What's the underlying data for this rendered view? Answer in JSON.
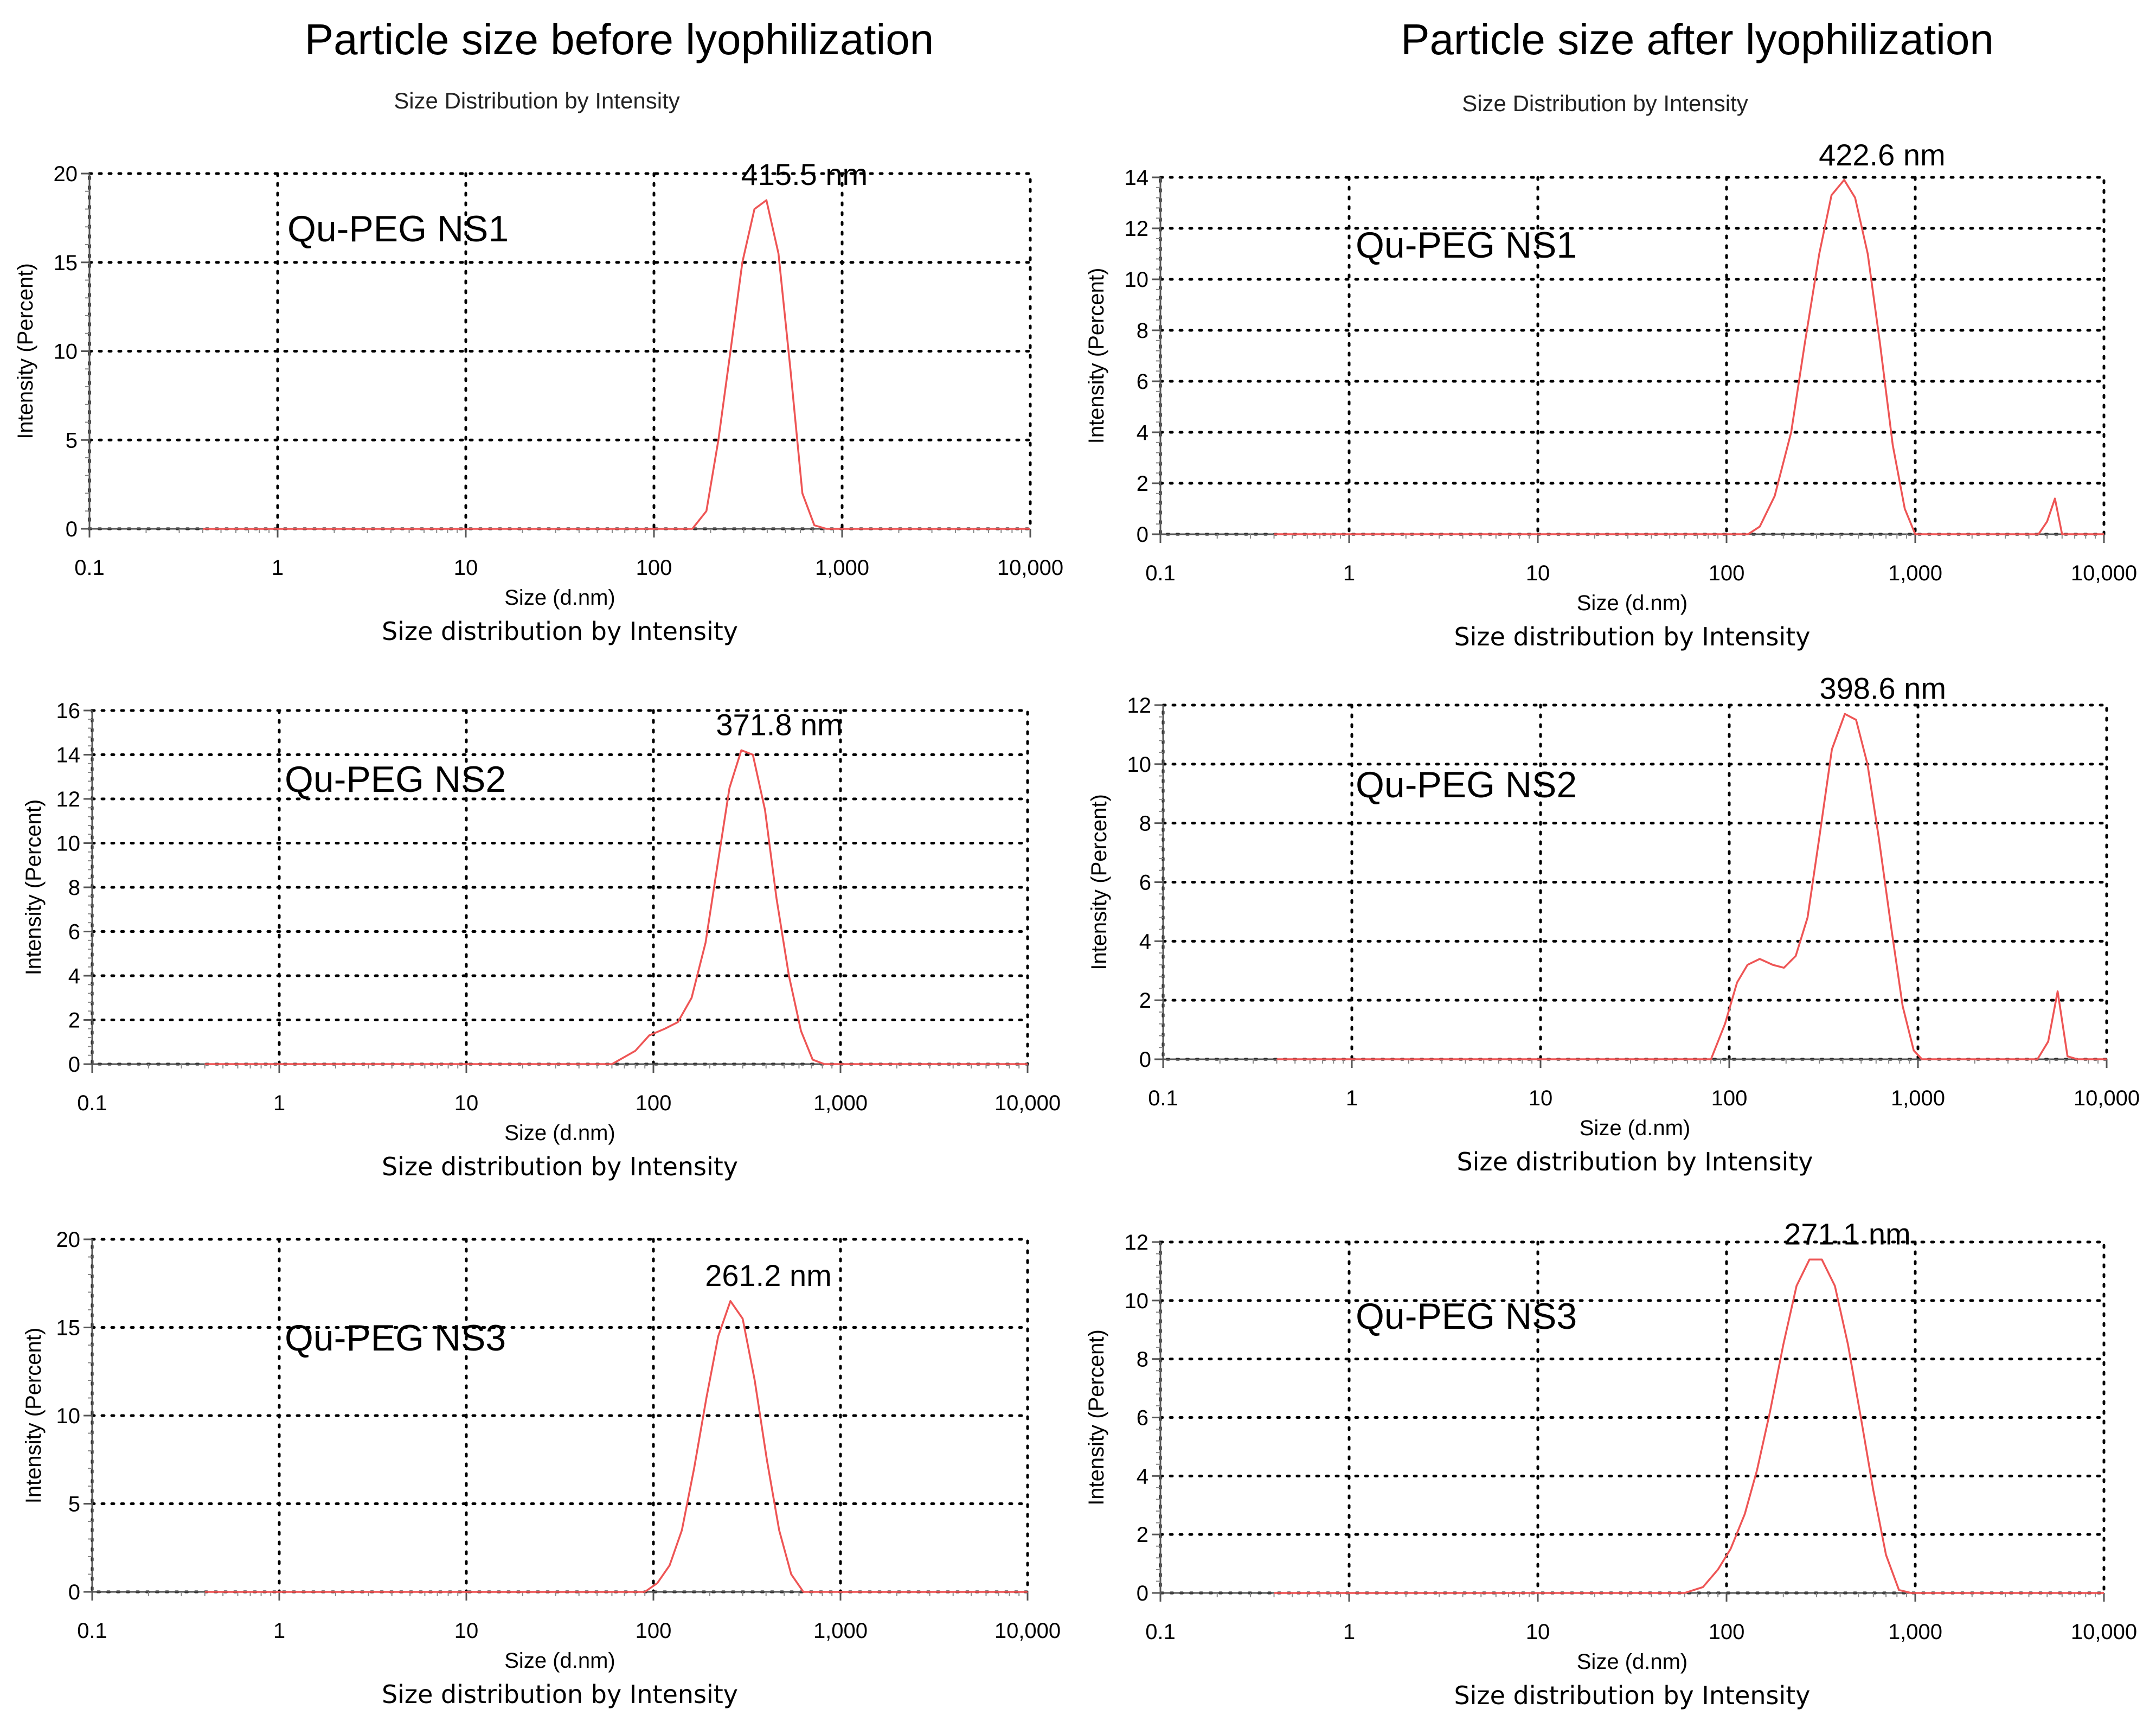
{
  "headings": {
    "before": "Particle size before lyophilization",
    "after": "Particle size after lyophilization"
  },
  "colors": {
    "series": "#ee5555",
    "grid": "#000000",
    "axis": "#555555"
  },
  "chart_data": [
    {
      "type": "line",
      "id": "before-ns1",
      "subtitle": "Size Distribution by Intensity",
      "sample": "Qu-PEG NS1",
      "peak_label": "415.5 nm",
      "xlabel": "Size (d.nm)",
      "ylabel": "Intensity (Percent)",
      "caption": "Size distribution by Intensity",
      "xscale": "log",
      "xlim": [
        0.1,
        10000
      ],
      "ylim": [
        0,
        20
      ],
      "x_ticks": [
        "0.1",
        "1",
        "10",
        "100",
        "1,000",
        "10,000"
      ],
      "y_ticks": [
        "0",
        "5",
        "10",
        "15",
        "20"
      ],
      "grid": true,
      "x": [
        0.4,
        100,
        160,
        190,
        220,
        255,
        295,
        342,
        396,
        459,
        531,
        615,
        712,
        825,
        1000,
        10000
      ],
      "y": [
        0,
        0,
        0,
        1,
        5,
        10,
        15,
        18,
        18.5,
        15.5,
        9,
        2,
        0.2,
        0,
        0,
        0
      ]
    },
    {
      "type": "line",
      "id": "after-ns1",
      "subtitle": "Size Distribution by Intensity",
      "sample": "Qu-PEG NS1",
      "peak_label": "422.6 nm",
      "xlabel": "Size (d.nm)",
      "ylabel": "Intensity (Percent)",
      "caption": "Size distribution by Intensity",
      "xscale": "log",
      "xlim": [
        0.1,
        10000
      ],
      "ylim": [
        0,
        14
      ],
      "x_ticks": [
        "0.1",
        "1",
        "10",
        "100",
        "1,000",
        "10,000"
      ],
      "y_ticks": [
        "0",
        "2",
        "4",
        "6",
        "8",
        "10",
        "12",
        "14"
      ],
      "grid": true,
      "x": [
        0.4,
        100,
        130,
        150,
        180,
        220,
        260,
        310,
        360,
        420,
        480,
        560,
        650,
        760,
        880,
        1000,
        4500,
        5000,
        5500,
        6000,
        10000
      ],
      "y": [
        0,
        0,
        0,
        0.3,
        1.5,
        4,
        7.5,
        11,
        13.3,
        13.9,
        13.2,
        11,
        7.5,
        3.5,
        1,
        0,
        0,
        0.5,
        1.4,
        0,
        0
      ]
    },
    {
      "type": "line",
      "id": "before-ns2",
      "subtitle": "",
      "sample": "Qu-PEG NS2",
      "peak_label": "371.8 nm",
      "xlabel": "Size (d.nm)",
      "ylabel": "Intensity (Percent)",
      "caption": "Size distribution by Intensity",
      "xscale": "log",
      "xlim": [
        0.1,
        10000
      ],
      "ylim": [
        0,
        16
      ],
      "x_ticks": [
        "0.1",
        "1",
        "10",
        "100",
        "1,000",
        "10,000"
      ],
      "y_ticks": [
        "0",
        "2",
        "4",
        "6",
        "8",
        "10",
        "12",
        "14",
        "16"
      ],
      "grid": true,
      "x": [
        0.4,
        60,
        80,
        95,
        115,
        135,
        160,
        190,
        220,
        255,
        295,
        340,
        395,
        455,
        530,
        615,
        710,
        820,
        1000,
        10000
      ],
      "y": [
        0,
        0,
        0.6,
        1.3,
        1.6,
        1.9,
        3,
        5.5,
        9,
        12.5,
        14.2,
        14,
        11.5,
        7.5,
        4,
        1.5,
        0.2,
        0,
        0,
        0
      ]
    },
    {
      "type": "line",
      "id": "after-ns2",
      "subtitle": "",
      "sample": "Qu-PEG NS2",
      "peak_label": "398.6 nm",
      "xlabel": "Size (d.nm)",
      "ylabel": "Intensity (Percent)",
      "caption": "Size distribution by Intensity",
      "xscale": "log",
      "xlim": [
        0.1,
        10000
      ],
      "ylim": [
        0,
        12
      ],
      "x_ticks": [
        "0.1",
        "1",
        "10",
        "100",
        "1,000",
        "10,000"
      ],
      "y_ticks": [
        "0",
        "2",
        "4",
        "6",
        "8",
        "10",
        "12"
      ],
      "grid": true,
      "x": [
        0.4,
        80,
        95,
        110,
        125,
        145,
        170,
        195,
        225,
        260,
        300,
        350,
        410,
        470,
        540,
        620,
        720,
        830,
        950,
        1050,
        1200,
        4300,
        4900,
        5500,
        6200,
        7000,
        10000
      ],
      "y": [
        0,
        0,
        1.2,
        2.6,
        3.2,
        3.4,
        3.2,
        3.1,
        3.5,
        4.8,
        7.5,
        10.5,
        11.7,
        11.5,
        10,
        7.5,
        4.5,
        1.8,
        0.3,
        0,
        0,
        0,
        0.6,
        2.3,
        0.1,
        0,
        0
      ]
    },
    {
      "type": "line",
      "id": "before-ns3",
      "subtitle": "",
      "sample": "Qu-PEG NS3",
      "peak_label": "261.2 nm",
      "xlabel": "Size (d.nm)",
      "ylabel": "Intensity (Percent)",
      "caption": "Size distribution by Intensity",
      "xscale": "log",
      "xlim": [
        0.1,
        10000
      ],
      "ylim": [
        0,
        20
      ],
      "x_ticks": [
        "0.1",
        "1",
        "10",
        "100",
        "1,000",
        "10,000"
      ],
      "y_ticks": [
        "0",
        "5",
        "10",
        "15",
        "20"
      ],
      "grid": true,
      "x": [
        0.4,
        90,
        105,
        122,
        142,
        165,
        192,
        222,
        258,
        300,
        348,
        404,
        470,
        545,
        633,
        1000,
        10000
      ],
      "y": [
        0,
        0,
        0.5,
        1.5,
        3.5,
        7,
        11,
        14.5,
        16.5,
        15.5,
        12,
        7.5,
        3.5,
        1,
        0,
        0,
        0
      ]
    },
    {
      "type": "line",
      "id": "after-ns3",
      "subtitle": "",
      "sample": "Qu-PEG NS3",
      "peak_label": "271.1 nm",
      "xlabel": "Size (d.nm)",
      "ylabel": "Intensity (Percent)",
      "caption": "Size distribution by Intensity",
      "xscale": "log",
      "xlim": [
        0.1,
        10000
      ],
      "ylim": [
        0,
        12
      ],
      "x_ticks": [
        "0.1",
        "1",
        "10",
        "100",
        "1,000",
        "10,000"
      ],
      "y_ticks": [
        "0",
        "2",
        "4",
        "6",
        "8",
        "10",
        "12"
      ],
      "grid": true,
      "x": [
        0.4,
        60,
        75,
        90,
        105,
        125,
        145,
        170,
        200,
        235,
        275,
        320,
        375,
        440,
        515,
        600,
        700,
        820,
        950,
        1100,
        10000
      ],
      "y": [
        0,
        0,
        0.2,
        0.8,
        1.5,
        2.7,
        4.2,
        6.2,
        8.5,
        10.5,
        11.4,
        11.4,
        10.5,
        8.5,
        6,
        3.5,
        1.3,
        0.1,
        0,
        0,
        0
      ]
    }
  ]
}
